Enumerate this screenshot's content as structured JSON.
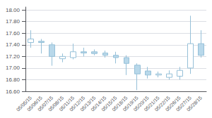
{
  "chart_data": {
    "type": "candlestick",
    "categories": [
      "05/05/15",
      "05/06/15",
      "05/07/15",
      "05/08/15",
      "05/11/15",
      "05/12/15",
      "05/13/15",
      "05/14/15",
      "05/15/15",
      "05/18/15",
      "05/19/15",
      "05/20/15",
      "05/21/15",
      "05/22/15",
      "05/26/15",
      "05/27/15",
      "05/28/15"
    ],
    "open": [
      17.44,
      17.46,
      17.4,
      17.16,
      17.18,
      17.26,
      17.28,
      17.26,
      17.22,
      17.18,
      17.05,
      16.95,
      16.88,
      16.84,
      16.86,
      17.0,
      17.42
    ],
    "high": [
      17.65,
      17.5,
      17.44,
      17.25,
      17.42,
      17.35,
      17.32,
      17.3,
      17.28,
      17.22,
      17.08,
      17.02,
      16.94,
      16.96,
      17.02,
      17.9,
      17.65
    ],
    "low": [
      17.35,
      17.25,
      17.04,
      17.1,
      17.15,
      17.2,
      17.22,
      17.18,
      17.08,
      16.88,
      16.62,
      16.82,
      16.84,
      16.8,
      16.8,
      16.9,
      17.18
    ],
    "close": [
      17.5,
      17.44,
      17.2,
      17.2,
      17.28,
      17.28,
      17.25,
      17.22,
      17.18,
      17.08,
      16.9,
      16.88,
      16.9,
      16.9,
      16.96,
      17.42,
      17.22
    ],
    "colors": [
      "#ffffff",
      "#b8d8ea",
      "#b8d8ea",
      "#ffffff",
      "#ffffff",
      "#b8d8ea",
      "#b8d8ea",
      "#b8d8ea",
      "#b8d8ea",
      "#b8d8ea",
      "#b8d8ea",
      "#b8d8ea",
      "#ffffff",
      "#ffffff",
      "#ffffff",
      "#ffffff",
      "#b8d8ea"
    ],
    "color": "#96c0d8",
    "ylim": [
      16.6,
      18.05
    ],
    "yticks": [
      {
        "value": 16.6,
        "label": "16.60"
      },
      {
        "value": 16.8,
        "label": "16.80"
      },
      {
        "value": 17.0,
        "label": "17.00"
      },
      {
        "value": 17.2,
        "label": "17.20"
      },
      {
        "value": 17.4,
        "label": "17.40"
      },
      {
        "value": 17.6,
        "label": "17.60"
      },
      {
        "value": 17.8,
        "label": "17.80"
      },
      {
        "value": 18.0,
        "label": "18.00"
      }
    ],
    "grid": true
  }
}
